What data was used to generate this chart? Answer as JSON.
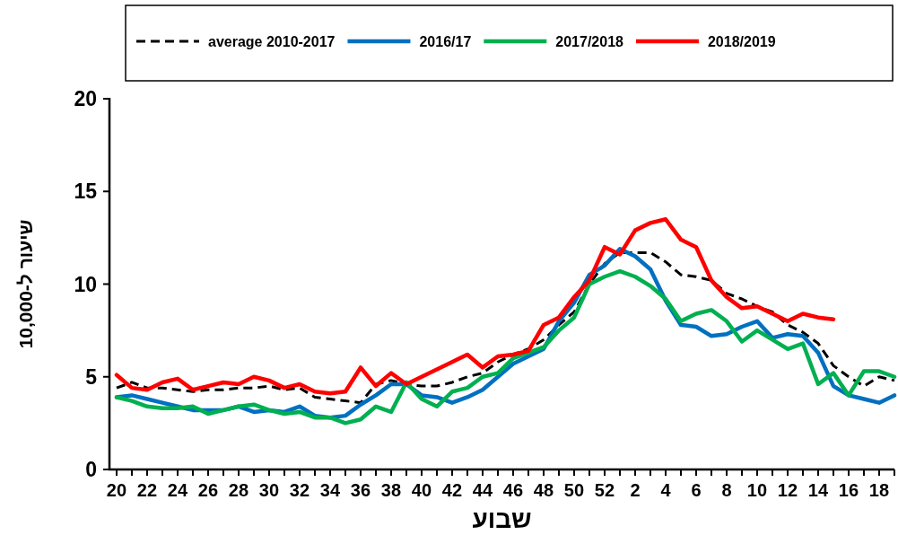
{
  "chart_data": {
    "type": "line",
    "xlabel": "שבוע",
    "ylabel": "שיעור ל-10,000",
    "categories": [
      "20",
      null,
      "22",
      null,
      "24",
      null,
      "26",
      null,
      "28",
      null,
      "30",
      null,
      "32",
      null,
      "34",
      null,
      "36",
      null,
      "38",
      null,
      "40",
      null,
      "42",
      null,
      "44",
      null,
      "46",
      null,
      "48",
      null,
      "50",
      null,
      "52",
      null,
      "2",
      null,
      "4",
      null,
      "6",
      null,
      "8",
      null,
      "10",
      null,
      "12",
      null,
      "14",
      null,
      "16",
      null,
      "18",
      null
    ],
    "series": [
      {
        "name": "average 2010-2017",
        "color": "#000000",
        "line_style": "dashed",
        "values": [
          4.4,
          4.7,
          4.4,
          4.4,
          4.3,
          4.2,
          4.3,
          4.3,
          4.4,
          4.4,
          4.5,
          4.3,
          4.4,
          3.9,
          3.8,
          3.7,
          3.6,
          4.6,
          4.8,
          4.6,
          4.5,
          4.5,
          4.7,
          5.0,
          5.2,
          5.8,
          6.2,
          6.5,
          7.0,
          7.8,
          8.5,
          10.0,
          11.1,
          11.7,
          11.7,
          11.7,
          11.2,
          10.5,
          10.4,
          10.2,
          9.5,
          9.2,
          8.8,
          8.5,
          7.8,
          7.4,
          6.8,
          5.6,
          5.0,
          4.5,
          5.0,
          4.8
        ]
      },
      {
        "name": "2016/17",
        "color": "#0070c0",
        "line_style": "solid",
        "values": [
          3.9,
          4.0,
          3.8,
          3.6,
          3.4,
          3.2,
          3.2,
          3.2,
          3.4,
          3.1,
          3.2,
          3.1,
          3.4,
          2.9,
          2.8,
          2.9,
          3.5,
          4.0,
          4.6,
          4.6,
          4.0,
          3.9,
          3.6,
          3.9,
          4.3,
          5.0,
          5.7,
          6.1,
          6.5,
          8.0,
          9.0,
          10.5,
          11.0,
          11.9,
          11.5,
          10.8,
          9.1,
          7.8,
          7.7,
          7.2,
          7.3,
          7.7,
          8.0,
          7.1,
          7.3,
          7.2,
          6.3,
          4.5,
          4.0,
          3.8,
          3.6,
          4.0
        ]
      },
      {
        "name": "2017/2018",
        "color": "#00b050",
        "line_style": "solid",
        "values": [
          3.9,
          3.7,
          3.4,
          3.3,
          3.3,
          3.4,
          3.0,
          3.2,
          3.4,
          3.5,
          3.2,
          3.0,
          3.1,
          2.8,
          2.8,
          2.5,
          2.7,
          3.4,
          3.1,
          4.7,
          3.8,
          3.4,
          4.2,
          4.4,
          5.0,
          5.2,
          6.0,
          6.3,
          6.6,
          7.5,
          8.2,
          10.0,
          10.4,
          10.7,
          10.4,
          9.9,
          9.2,
          8.0,
          8.4,
          8.6,
          8.0,
          6.9,
          7.5,
          7.0,
          6.5,
          6.8,
          4.6,
          5.2,
          4.0,
          5.3,
          5.3,
          5.0
        ]
      },
      {
        "name": "2018/2019",
        "color": "#ff0000",
        "line_style": "solid",
        "values": [
          5.1,
          4.4,
          4.3,
          4.7,
          4.9,
          4.3,
          4.5,
          4.7,
          4.6,
          5.0,
          4.8,
          4.4,
          4.6,
          4.2,
          4.1,
          4.2,
          5.5,
          4.5,
          5.2,
          4.6,
          5.0,
          5.4,
          5.8,
          6.2,
          5.5,
          6.1,
          6.2,
          6.4,
          7.8,
          8.2,
          9.3,
          10.2,
          12.0,
          11.6,
          12.9,
          13.3,
          13.5,
          12.4,
          12.0,
          10.2,
          9.3,
          8.7,
          8.8,
          8.4,
          8.0,
          8.4,
          8.2,
          8.1,
          null,
          null,
          null,
          null
        ]
      }
    ],
    "ylim": [
      0,
      20
    ],
    "yticks": [
      0,
      5,
      10,
      15,
      20
    ],
    "legend": "top",
    "marker": "none"
  }
}
